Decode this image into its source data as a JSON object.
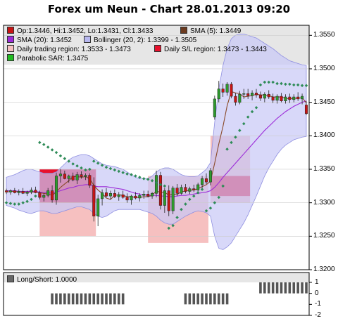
{
  "title": "Forex um Neun - Chart 28.01.2013 09:20",
  "colors": {
    "up": "#2d9b2d",
    "down": "#c81414",
    "bollinger_fill": "#c7c7f7",
    "sma20": "#9c2bd8",
    "sma5": "#8a4a2a",
    "sar": "#2e8b57",
    "daily_region": "#f5b5b5",
    "sl_region": "#e8102c",
    "sl_region_dark": "#ce1030",
    "bar": "#555555"
  },
  "legend": [
    {
      "label": "Op:1.3446, Hi:1.3452, Lo:1.3431, Cl:1.3433",
      "color": "#c81414"
    },
    {
      "label": "SMA (5): 1.3449",
      "color": "#6b3a1f"
    },
    {
      "label": "SMA (20): 1.3452",
      "color": "#9c2bd8"
    },
    {
      "label": "Bollinger (20, 2): 1.3399 - 1.3505",
      "color": "#b8b8f0"
    },
    {
      "label": "Daily trading region: 1.3533 - 1.3473",
      "color": "#f5c0c0"
    },
    {
      "label": "Daily S/L region: 1.3473 - 1.3443",
      "color": "#e8102c"
    },
    {
      "label": "Parabolic SAR: 1.3475",
      "color": "#22bb22"
    }
  ],
  "lower_legend": {
    "label": "Long/Short: 1.0000",
    "color": "#666666"
  },
  "chart_data": [
    {
      "type": "candlestick",
      "title": "Forex um Neun - Chart 28.01.2013 09:20",
      "ylim": [
        1.32,
        1.3565
      ],
      "yticks": [
        "1.3550",
        "1.3500",
        "1.3450",
        "1.3400",
        "1.3350",
        "1.3300",
        "1.3250",
        "1.3200"
      ],
      "grid": true,
      "legend_position": "top-left",
      "candles": [
        [
          1.3318,
          1.3321,
          1.3313,
          1.3316
        ],
        [
          1.3316,
          1.332,
          1.3312,
          1.3318
        ],
        [
          1.3318,
          1.3322,
          1.3314,
          1.3315
        ],
        [
          1.3315,
          1.332,
          1.3311,
          1.3317
        ],
        [
          1.3317,
          1.3322,
          1.3313,
          1.3314
        ],
        [
          1.3314,
          1.3318,
          1.331,
          1.3316
        ],
        [
          1.3316,
          1.3323,
          1.3313,
          1.3319
        ],
        [
          1.3319,
          1.3324,
          1.3314,
          1.3315
        ],
        [
          1.3315,
          1.3318,
          1.3305,
          1.3308
        ],
        [
          1.3308,
          1.3314,
          1.3302,
          1.3311
        ],
        [
          1.3311,
          1.3322,
          1.3308,
          1.3318
        ],
        [
          1.3318,
          1.3326,
          1.33,
          1.3304
        ],
        [
          1.3304,
          1.3345,
          1.3297,
          1.334
        ],
        [
          1.334,
          1.335,
          1.333,
          1.3343
        ],
        [
          1.3343,
          1.3348,
          1.3335,
          1.3336
        ],
        [
          1.3336,
          1.3342,
          1.333,
          1.334
        ],
        [
          1.334,
          1.3345,
          1.3332,
          1.3334
        ],
        [
          1.3334,
          1.3346,
          1.3328,
          1.3342
        ],
        [
          1.3342,
          1.3347,
          1.3336,
          1.3339
        ],
        [
          1.3339,
          1.3344,
          1.3334,
          1.3341
        ],
        [
          1.3341,
          1.3344,
          1.3322,
          1.3326
        ],
        [
          1.3326,
          1.3338,
          1.3272,
          1.328
        ],
        [
          1.328,
          1.3312,
          1.3265,
          1.3306
        ],
        [
          1.3306,
          1.332,
          1.3296,
          1.3315
        ],
        [
          1.3315,
          1.3322,
          1.3308,
          1.331
        ],
        [
          1.331,
          1.3318,
          1.3305,
          1.3314
        ],
        [
          1.3314,
          1.332,
          1.3307,
          1.3309
        ],
        [
          1.3309,
          1.3316,
          1.3303,
          1.3312
        ],
        [
          1.3312,
          1.3318,
          1.3306,
          1.3308
        ],
        [
          1.3308,
          1.3314,
          1.33,
          1.3304
        ],
        [
          1.3304,
          1.3312,
          1.3297,
          1.331
        ],
        [
          1.331,
          1.3316,
          1.3305,
          1.3307
        ],
        [
          1.3307,
          1.3314,
          1.3302,
          1.3311
        ],
        [
          1.3311,
          1.3318,
          1.3306,
          1.3313
        ],
        [
          1.3313,
          1.3318,
          1.3308,
          1.331
        ],
        [
          1.331,
          1.3316,
          1.3306,
          1.3314
        ],
        [
          1.3314,
          1.3348,
          1.3308,
          1.3341
        ],
        [
          1.3341,
          1.3346,
          1.329,
          1.3296
        ],
        [
          1.3296,
          1.3322,
          1.3285,
          1.3318
        ],
        [
          1.3318,
          1.3326,
          1.328,
          1.3288
        ],
        [
          1.3288,
          1.3325,
          1.3283,
          1.3322
        ],
        [
          1.3322,
          1.3328,
          1.331,
          1.3314
        ],
        [
          1.3314,
          1.3327,
          1.3312,
          1.3323
        ],
        [
          1.3323,
          1.3328,
          1.3314,
          1.3317
        ],
        [
          1.3317,
          1.3324,
          1.3313,
          1.3321
        ],
        [
          1.3321,
          1.3327,
          1.3316,
          1.3319
        ],
        [
          1.3319,
          1.333,
          1.3315,
          1.3327
        ],
        [
          1.3327,
          1.334,
          1.3322,
          1.3336
        ],
        [
          1.3336,
          1.3344,
          1.3328,
          1.3331
        ],
        [
          1.3331,
          1.3352,
          1.3326,
          1.3348
        ],
        [
          1.3428,
          1.346,
          1.3424,
          1.3455
        ],
        [
          1.3455,
          1.3482,
          1.345,
          1.347
        ],
        [
          1.347,
          1.3478,
          1.3458,
          1.3465
        ],
        [
          1.3465,
          1.348,
          1.346,
          1.3477
        ],
        [
          1.3477,
          1.348,
          1.3456,
          1.3459
        ],
        [
          1.3459,
          1.3464,
          1.3445,
          1.345
        ],
        [
          1.345,
          1.3467,
          1.3447,
          1.3462
        ],
        [
          1.3462,
          1.347,
          1.3455,
          1.3463
        ],
        [
          1.3463,
          1.347,
          1.3455,
          1.346
        ],
        [
          1.346,
          1.3468,
          1.3453,
          1.3464
        ],
        [
          1.3464,
          1.347,
          1.3457,
          1.3461
        ],
        [
          1.3461,
          1.3466,
          1.3452,
          1.3456
        ],
        [
          1.3456,
          1.3465,
          1.345,
          1.3462
        ],
        [
          1.3462,
          1.3468,
          1.3455,
          1.3458
        ],
        [
          1.3458,
          1.3463,
          1.3449,
          1.3453
        ],
        [
          1.3453,
          1.3462,
          1.3448,
          1.3459
        ],
        [
          1.3459,
          1.3464,
          1.345,
          1.3452
        ],
        [
          1.3452,
          1.3462,
          1.3448,
          1.3458
        ],
        [
          1.3458,
          1.3463,
          1.3449,
          1.3454
        ],
        [
          1.3454,
          1.3462,
          1.345,
          1.3458
        ],
        [
          1.3458,
          1.3465,
          1.3452,
          1.3455
        ],
        [
          1.3455,
          1.3463,
          1.3447,
          1.3459
        ],
        [
          1.3446,
          1.3452,
          1.3431,
          1.3433
        ]
      ],
      "sma5": [
        1.3316,
        1.3317,
        1.3317,
        1.3316,
        1.3316,
        1.3316,
        1.3316,
        1.3316,
        1.3315,
        1.3314,
        1.3313,
        1.3311,
        1.3316,
        1.3323,
        1.3328,
        1.3333,
        1.3339,
        1.3339,
        1.3338,
        1.3339,
        1.3336,
        1.3326,
        1.3319,
        1.3314,
        1.3307,
        1.3305,
        1.3311,
        1.3312,
        1.3311,
        1.3309,
        1.3309,
        1.3308,
        1.3308,
        1.3309,
        1.3309,
        1.3311,
        1.3318,
        1.3315,
        1.3316,
        1.3311,
        1.3313,
        1.3312,
        1.3317,
        1.3317,
        1.3319,
        1.3319,
        1.3321,
        1.3324,
        1.3327,
        1.3332,
        1.3359,
        1.3388,
        1.3414,
        1.3445,
        1.3466,
        1.3464,
        1.3463,
        1.3458,
        1.3459,
        1.346,
        1.3462,
        1.3461,
        1.3461,
        1.346,
        1.3458,
        1.3458,
        1.3458,
        1.3456,
        1.3455,
        1.3456,
        1.3456,
        1.3457,
        1.3449
      ],
      "sma20": [
        1.3318,
        1.3318,
        1.3318,
        1.3317,
        1.3317,
        1.3317,
        1.3317,
        1.3317,
        1.3316,
        1.3315,
        1.3315,
        1.3314,
        1.3316,
        1.3318,
        1.332,
        1.3322,
        1.3323,
        1.3325,
        1.3326,
        1.3327,
        1.3327,
        1.3325,
        1.3324,
        1.3324,
        1.3324,
        1.3323,
        1.3322,
        1.3321,
        1.332,
        1.3318,
        1.3316,
        1.3314,
        1.3313,
        1.3312,
        1.3311,
        1.3311,
        1.3311,
        1.331,
        1.331,
        1.3309,
        1.3309,
        1.331,
        1.3311,
        1.3311,
        1.3312,
        1.3313,
        1.3314,
        1.3315,
        1.3316,
        1.3318,
        1.3323,
        1.333,
        1.3338,
        1.3345,
        1.3352,
        1.3359,
        1.3366,
        1.3373,
        1.338,
        1.3387,
        1.3394,
        1.3401,
        1.3408,
        1.3414,
        1.342,
        1.3426,
        1.3431,
        1.3436,
        1.344,
        1.3444,
        1.3447,
        1.345,
        1.3452
      ],
      "bollinger_upper": [
        1.3338,
        1.334,
        1.3342,
        1.3345,
        1.3348,
        1.335,
        1.335,
        1.3348,
        1.3346,
        1.3344,
        1.3344,
        1.3344,
        1.3346,
        1.3352,
        1.3358,
        1.3364,
        1.3368,
        1.337,
        1.3372,
        1.3372,
        1.337,
        1.3366,
        1.3362,
        1.3358,
        1.3356,
        1.3355,
        1.3354,
        1.3352,
        1.335,
        1.3346,
        1.3342,
        1.3338,
        1.3336,
        1.3336,
        1.3336,
        1.334,
        1.3346,
        1.335,
        1.3352,
        1.3352,
        1.335,
        1.3346,
        1.3342,
        1.334,
        1.3339,
        1.3339,
        1.334,
        1.3345,
        1.335,
        1.336,
        1.342,
        1.347,
        1.3505,
        1.353,
        1.3545,
        1.355,
        1.3552,
        1.3552,
        1.355,
        1.3548,
        1.3546,
        1.3542,
        1.3538,
        1.3534,
        1.353,
        1.3525,
        1.352,
        1.3516,
        1.3512,
        1.351,
        1.3508,
        1.3506,
        1.3505
      ],
      "bollinger_lower": [
        1.3296,
        1.3294,
        1.3292,
        1.3289,
        1.3287,
        1.3285,
        1.3284,
        1.3286,
        1.3288,
        1.3288,
        1.3286,
        1.3284,
        1.3284,
        1.3286,
        1.3288,
        1.329,
        1.3292,
        1.3294,
        1.3294,
        1.3292,
        1.329,
        1.3284,
        1.328,
        1.3278,
        1.328,
        1.3284,
        1.3288,
        1.329,
        1.329,
        1.329,
        1.329,
        1.329,
        1.329,
        1.3288,
        1.3286,
        1.3284,
        1.328,
        1.3274,
        1.327,
        1.3268,
        1.3268,
        1.3272,
        1.3276,
        1.328,
        1.3283,
        1.3286,
        1.3288,
        1.3287,
        1.3285,
        1.328,
        1.325,
        1.3232,
        1.323,
        1.3234,
        1.324,
        1.325,
        1.326,
        1.327,
        1.3282,
        1.3296,
        1.331,
        1.3325,
        1.334,
        1.3352,
        1.3362,
        1.3372,
        1.338,
        1.3386,
        1.339,
        1.3394,
        1.3396,
        1.3398,
        1.3399
      ],
      "sar": [
        [
          0,
          1.33
        ],
        [
          1,
          1.3299
        ],
        [
          2,
          1.3298
        ],
        [
          3,
          1.3298
        ],
        [
          4,
          1.33
        ],
        [
          5,
          1.3302
        ],
        [
          6,
          1.3305
        ],
        [
          7,
          1.331
        ],
        [
          8,
          1.339
        ],
        [
          9,
          1.3387
        ],
        [
          10,
          1.3383
        ],
        [
          11,
          1.3379
        ],
        [
          12,
          1.3375
        ],
        [
          13,
          1.337
        ],
        [
          14,
          1.3366
        ],
        [
          15,
          1.3362
        ],
        [
          16,
          1.3358
        ],
        [
          17,
          1.3355
        ],
        [
          18,
          1.3352
        ],
        [
          19,
          1.3349
        ],
        [
          20,
          1.335
        ],
        [
          21,
          1.3362
        ],
        [
          22,
          1.3359
        ],
        [
          23,
          1.3356
        ],
        [
          24,
          1.3353
        ],
        [
          25,
          1.3351
        ],
        [
          26,
          1.3349
        ],
        [
          27,
          1.3347
        ],
        [
          28,
          1.3345
        ],
        [
          29,
          1.3343
        ],
        [
          30,
          1.3342
        ],
        [
          31,
          1.334
        ],
        [
          32,
          1.3338
        ],
        [
          33,
          1.3336
        ],
        [
          34,
          1.3335
        ],
        [
          35,
          1.3333
        ],
        [
          36,
          1.333
        ],
        [
          37,
          1.3327
        ],
        [
          38,
          1.3325
        ],
        [
          39,
          1.3262
        ],
        [
          40,
          1.3266
        ],
        [
          41,
          1.3278
        ],
        [
          42,
          1.329
        ],
        [
          43,
          1.3298
        ],
        [
          44,
          1.3305
        ],
        [
          45,
          1.331
        ],
        [
          46,
          1.3315
        ],
        [
          47,
          1.332
        ],
        [
          48,
          1.3288
        ],
        [
          49,
          1.3292
        ],
        [
          50,
          1.33
        ],
        [
          51,
          1.3308
        ],
        [
          52,
          1.3325
        ],
        [
          53,
          1.338
        ],
        [
          54,
          1.339
        ],
        [
          55,
          1.3398
        ],
        [
          56,
          1.3408
        ],
        [
          57,
          1.3418
        ],
        [
          58,
          1.3428
        ],
        [
          59,
          1.3436
        ],
        [
          60,
          1.3442
        ],
        [
          61,
          1.3476
        ],
        [
          62,
          1.348
        ],
        [
          63,
          1.348
        ],
        [
          64,
          1.348
        ],
        [
          65,
          1.3478
        ],
        [
          66,
          1.3478
        ],
        [
          67,
          1.3477
        ],
        [
          68,
          1.3477
        ],
        [
          69,
          1.3476
        ],
        [
          70,
          1.3476
        ],
        [
          71,
          1.3475
        ],
        [
          72,
          1.3475
        ]
      ],
      "daily_trading_region": [
        {
          "x0": 8,
          "x1": 21.5,
          "y0": 1.325,
          "y1": 1.335
        },
        {
          "x0": 34,
          "x1": 48.5,
          "y0": 1.324,
          "y1": 1.334
        },
        {
          "x0": 49,
          "x1": 58.5,
          "y0": 1.33,
          "y1": 1.34
        }
      ],
      "daily_sl_region": [
        {
          "x0": 8,
          "x1": 21.5,
          "y0": 1.33,
          "y1": 1.335
        },
        {
          "x0": 49,
          "x1": 58.5,
          "y0": 1.331,
          "y1": 1.334
        }
      ]
    },
    {
      "type": "bar",
      "title": "Long/Short: 1.0000",
      "ylim": [
        -2,
        1
      ],
      "yticks": [
        "1",
        "0",
        "-1",
        "-2"
      ],
      "values_nonzero": [
        {
          "x0": 11,
          "x1": 28,
          "value": -1
        },
        {
          "x0": 43,
          "x1": 53,
          "value": -1
        },
        {
          "x0": 61,
          "x1": 72,
          "value": 1
        }
      ]
    }
  ]
}
